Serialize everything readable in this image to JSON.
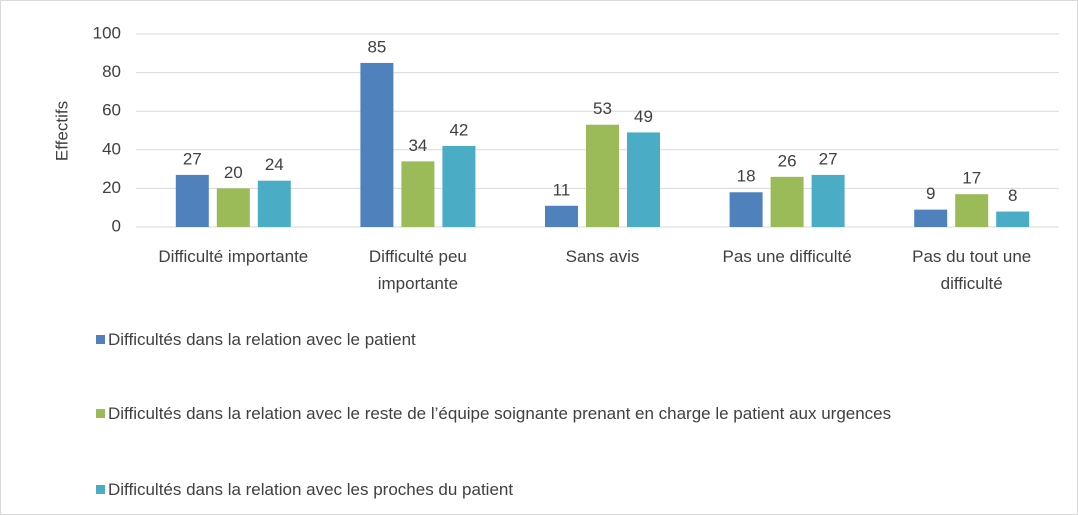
{
  "chart_data": {
    "type": "bar",
    "y_label": "Effectifs",
    "categories": [
      "Difficulté importante",
      "Difficulté peu importante",
      "Sans avis",
      "Pas une difficulté",
      "Pas du tout une difficulté"
    ],
    "series": [
      {
        "name": "Difficultés dans la relation avec le patient",
        "color": "#4f81bd",
        "values": [
          27,
          85,
          11,
          18,
          9
        ]
      },
      {
        "name": "Difficultés dans la relation avec le reste de l’équipe soignante prenant en charge le patient aux urgences",
        "color": "#9bbb59",
        "values": [
          20,
          34,
          53,
          26,
          17
        ]
      },
      {
        "name": "Difficultés dans la relation avec les proches du patient",
        "color": "#4bacc6",
        "values": [
          24,
          42,
          49,
          27,
          8
        ]
      }
    ],
    "ylim": [
      0,
      100
    ],
    "yticks": [
      0,
      20,
      40,
      60,
      80,
      100
    ],
    "grid": true,
    "legend": "bottom"
  }
}
